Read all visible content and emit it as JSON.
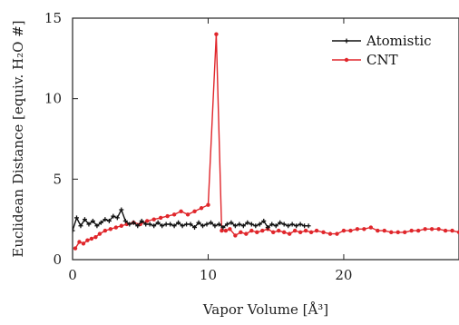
{
  "chart_data": {
    "type": "line",
    "title": "",
    "xlabel": "Vapor Volume [Å³]",
    "ylabel": "Euclidean Distance [equiv. H₂O #]",
    "xlim": [
      0,
      28.5
    ],
    "ylim": [
      0,
      15
    ],
    "xticks": [
      "0",
      "10",
      "20"
    ],
    "xtick_values": [
      0,
      10,
      20
    ],
    "yticks": [
      "0",
      "5",
      "10",
      "15"
    ],
    "ytick_values": [
      0,
      5,
      10,
      15
    ],
    "grid": false,
    "legend_position": "top-right",
    "series": [
      {
        "name": "Atomistic",
        "color": "#111111",
        "marker": "plus",
        "x": [
          0.0,
          0.3,
          0.6,
          0.9,
          1.2,
          1.5,
          1.8,
          2.1,
          2.4,
          2.7,
          3.0,
          3.3,
          3.6,
          3.9,
          4.2,
          4.5,
          4.8,
          5.1,
          5.4,
          5.7,
          6.0,
          6.3,
          6.6,
          6.9,
          7.2,
          7.5,
          7.8,
          8.1,
          8.4,
          8.7,
          9.0,
          9.3,
          9.6,
          9.9,
          10.2,
          10.5,
          10.8,
          11.1,
          11.4,
          11.7,
          12.0,
          12.3,
          12.6,
          12.9,
          13.2,
          13.5,
          13.8,
          14.1,
          14.4,
          14.7,
          15.0,
          15.3,
          15.6,
          15.9,
          16.2,
          16.5,
          16.8,
          17.1,
          17.4
        ],
        "y": [
          1.8,
          2.6,
          2.1,
          2.5,
          2.2,
          2.4,
          2.1,
          2.3,
          2.5,
          2.4,
          2.7,
          2.6,
          3.1,
          2.4,
          2.2,
          2.3,
          2.1,
          2.4,
          2.2,
          2.2,
          2.1,
          2.3,
          2.1,
          2.2,
          2.2,
          2.1,
          2.3,
          2.1,
          2.2,
          2.2,
          2.0,
          2.3,
          2.1,
          2.2,
          2.3,
          2.1,
          2.2,
          2.0,
          2.2,
          2.3,
          2.1,
          2.2,
          2.1,
          2.3,
          2.2,
          2.1,
          2.2,
          2.4,
          2.0,
          2.2,
          2.1,
          2.3,
          2.2,
          2.1,
          2.2,
          2.1,
          2.2,
          2.1,
          2.1
        ]
      },
      {
        "name": "CNT",
        "color": "#e0262b",
        "marker": "dot",
        "x": [
          0.2,
          0.5,
          0.8,
          1.1,
          1.4,
          1.7,
          2.0,
          2.4,
          2.8,
          3.2,
          3.6,
          4.0,
          4.5,
          5.0,
          5.5,
          6.0,
          6.5,
          7.0,
          7.5,
          8.0,
          8.5,
          9.0,
          9.5,
          10.0,
          10.6,
          11.0,
          11.3,
          11.6,
          12.0,
          12.4,
          12.8,
          13.2,
          13.6,
          14.0,
          14.4,
          14.8,
          15.2,
          15.6,
          16.0,
          16.4,
          16.8,
          17.2,
          17.6,
          18.0,
          18.5,
          19.0,
          19.5,
          20.0,
          20.5,
          21.0,
          21.5,
          22.0,
          22.5,
          23.0,
          23.5,
          24.0,
          24.5,
          25.0,
          25.5,
          26.0,
          26.5,
          27.0,
          27.5,
          28.0,
          28.5
        ],
        "y": [
          0.7,
          1.1,
          1.0,
          1.2,
          1.3,
          1.4,
          1.6,
          1.8,
          1.9,
          2.0,
          2.1,
          2.2,
          2.3,
          2.2,
          2.4,
          2.5,
          2.6,
          2.7,
          2.8,
          3.0,
          2.8,
          3.0,
          3.2,
          3.4,
          14.0,
          1.8,
          1.8,
          1.9,
          1.5,
          1.7,
          1.6,
          1.8,
          1.7,
          1.8,
          1.9,
          1.7,
          1.8,
          1.7,
          1.6,
          1.8,
          1.7,
          1.8,
          1.7,
          1.8,
          1.7,
          1.6,
          1.6,
          1.8,
          1.8,
          1.9,
          1.9,
          2.0,
          1.8,
          1.8,
          1.7,
          1.7,
          1.7,
          1.8,
          1.8,
          1.9,
          1.9,
          1.9,
          1.8,
          1.8,
          1.7
        ]
      }
    ]
  }
}
